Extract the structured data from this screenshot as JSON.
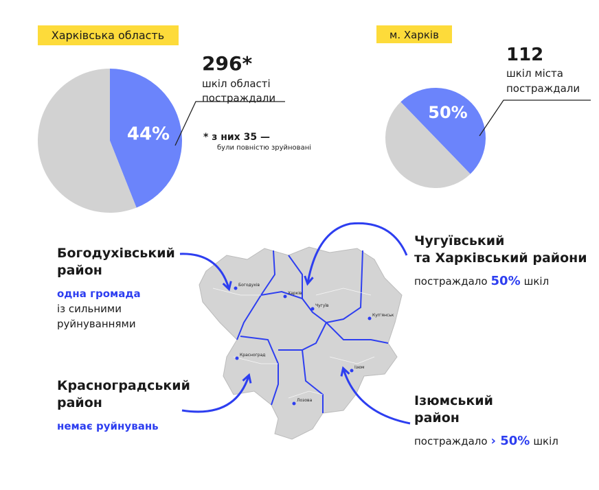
{
  "chart_data": [
    {
      "type": "pie",
      "title": "Харківська область",
      "values": [
        44,
        56
      ],
      "value_labels": [
        "44%",
        null
      ],
      "colors": [
        "#6b84fb",
        "#d2d2d2"
      ],
      "headline": "296*",
      "caption_lines": [
        "шкіл області",
        "постраждали"
      ],
      "footnote": "* з них 35 —",
      "footnote_detail": "були повністю зруйновані"
    },
    {
      "type": "pie",
      "title": "м. Харків",
      "values": [
        50,
        50
      ],
      "value_labels": [
        "50%",
        null
      ],
      "colors": [
        "#6b84fb",
        "#d2d2d2"
      ],
      "headline": "112",
      "caption_lines": [
        "шкіл міста",
        "постраждали"
      ]
    }
  ],
  "regions": [
    {
      "name_lines": [
        "Богодухівський",
        "район"
      ],
      "detail_highlight": "одна громада",
      "detail_lines": [
        "із сильними",
        "руйнуваннями"
      ]
    },
    {
      "name_lines": [
        "Красноградський",
        "район"
      ],
      "detail_highlight": "немає руйнувань"
    },
    {
      "name_lines": [
        "Чугуївський",
        "та Харківський райони"
      ],
      "prefix": "постраждало",
      "highlight": "50%",
      "suffix": "шкіл"
    },
    {
      "name_lines": [
        "Ізюмський",
        "район"
      ],
      "prefix": "постраждало",
      "highlight": "› 50%",
      "suffix": "шкіл"
    }
  ],
  "map": {
    "cities": [
      "Богодухів",
      "Харків",
      "Чугуїв",
      "Куп'янськ",
      "Красноград",
      "Лозова",
      "Ізюм"
    ]
  }
}
